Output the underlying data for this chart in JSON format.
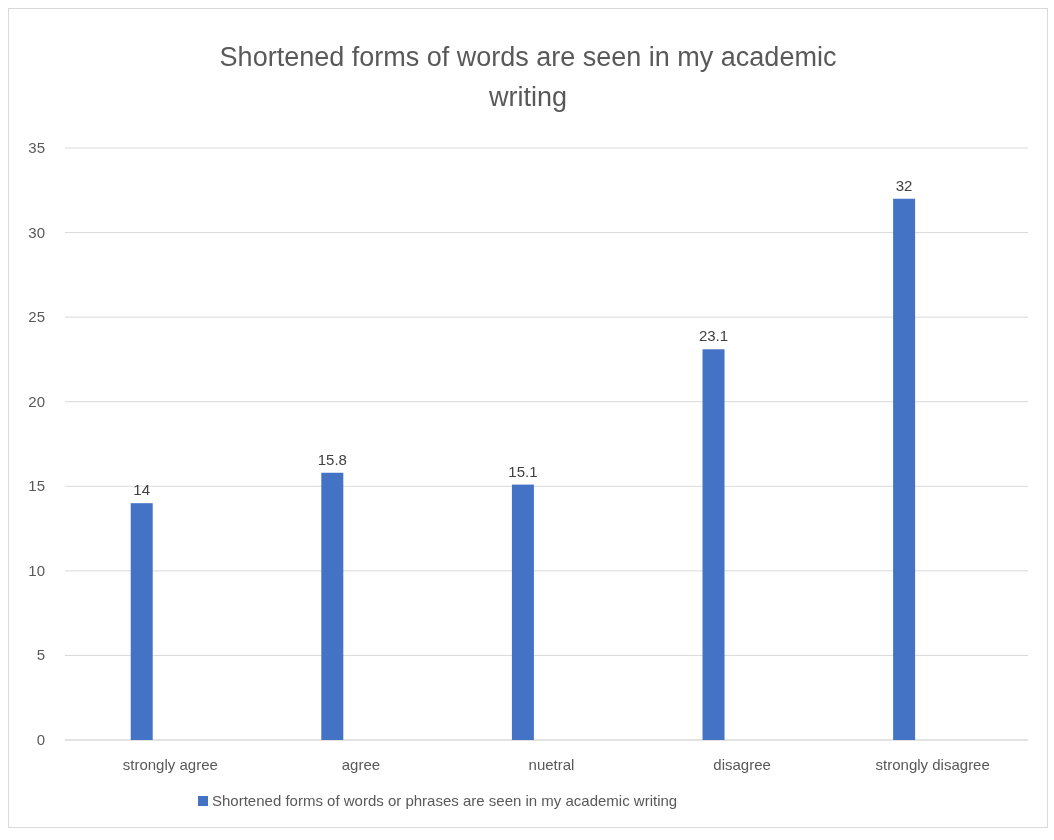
{
  "chart_data": {
    "type": "bar",
    "title": "Shortened forms of words are seen in my academic writing",
    "categories": [
      "strongly agree",
      "agree",
      "nuetral",
      "disagree",
      "strongly disagree"
    ],
    "series": [
      {
        "name": "Shortened forms of words or phrases are seen in my academic writing",
        "color": "#4472c4",
        "values": [
          14,
          15.8,
          15.1,
          23.1,
          32
        ]
      }
    ],
    "ylim": [
      0,
      35
    ],
    "yticks": [
      0,
      5,
      10,
      15,
      20,
      25,
      30,
      35
    ],
    "grid": "y",
    "legend": "bottom",
    "data_labels": true
  }
}
